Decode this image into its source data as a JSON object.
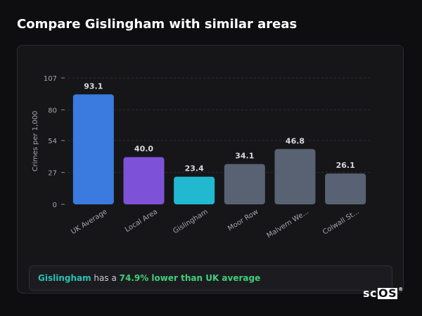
{
  "page": {
    "title": "Compare Gislingham with similar areas"
  },
  "chart_data": {
    "type": "bar",
    "ylabel": "Crimes per 1,000",
    "xlabel": "",
    "ylim": [
      0,
      107
    ],
    "yticks": [
      0,
      27,
      54,
      80,
      107
    ],
    "categories": [
      "UK Average",
      "Local Area",
      "Gislingham",
      "Moor Row",
      "Malvern We...",
      "Colwall St..."
    ],
    "values": [
      93.1,
      40.0,
      23.4,
      34.1,
      46.8,
      26.1
    ],
    "value_labels": [
      "93.1",
      "40.0",
      "23.4",
      "34.1",
      "46.8",
      "26.1"
    ],
    "colors": [
      "#3b7be0",
      "#7e52d8",
      "#22b8cf",
      "#596273",
      "#596273",
      "#596273"
    ],
    "grid": "dashed",
    "legend": "none"
  },
  "summary": {
    "area": "Gislingham",
    "middle": " has a ",
    "comparison": "74.9% lower than UK average",
    "area_color": "#27c2b5",
    "comparison_color": "#3fd07a"
  },
  "branding": {
    "logo_prefix": "sc",
    "logo_box": "OS",
    "logo_mark": "®"
  }
}
